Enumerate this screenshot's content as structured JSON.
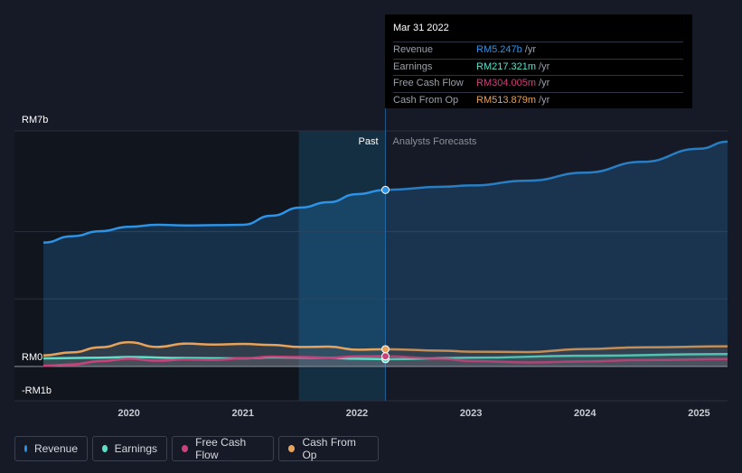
{
  "chart_data": {
    "type": "area",
    "y_axis": {
      "min": -1000,
      "max": 7000,
      "unit": "RM millions",
      "labels": [
        "RM7b",
        "RM0",
        "-RM1b"
      ]
    },
    "x_ticks": [
      "2020",
      "2021",
      "2022",
      "2023",
      "2024",
      "2025"
    ],
    "x_range": [
      2019.25,
      2025.25
    ],
    "divider_x": 2022.25,
    "past_label": "Past",
    "forecast_label": "Analysts Forecasts",
    "series": [
      {
        "name": "Revenue",
        "color": "#2d93e6",
        "points": [
          [
            2019.25,
            3680
          ],
          [
            2019.5,
            3870
          ],
          [
            2019.75,
            4020
          ],
          [
            2020.0,
            4150
          ],
          [
            2020.25,
            4210
          ],
          [
            2020.5,
            4190
          ],
          [
            2020.75,
            4200
          ],
          [
            2021.0,
            4210
          ],
          [
            2021.25,
            4480
          ],
          [
            2021.5,
            4720
          ],
          [
            2021.75,
            4880
          ],
          [
            2022.0,
            5120
          ],
          [
            2022.25,
            5247
          ]
        ],
        "forecast": [
          [
            2022.25,
            5247
          ],
          [
            2022.75,
            5340
          ],
          [
            2023.0,
            5380
          ],
          [
            2023.5,
            5520
          ],
          [
            2024.0,
            5760
          ],
          [
            2024.5,
            6080
          ],
          [
            2025.0,
            6470
          ],
          [
            2025.25,
            6680
          ]
        ]
      },
      {
        "name": "Earnings",
        "color": "#5ce0c8",
        "points": [
          [
            2019.25,
            240
          ],
          [
            2019.75,
            260
          ],
          [
            2020.0,
            280
          ],
          [
            2020.5,
            250
          ],
          [
            2021.0,
            240
          ],
          [
            2021.25,
            270
          ],
          [
            2021.75,
            260
          ],
          [
            2022.0,
            230
          ],
          [
            2022.25,
            217
          ]
        ],
        "forecast": [
          [
            2022.25,
            217
          ],
          [
            2023.0,
            260
          ],
          [
            2024.0,
            320
          ],
          [
            2025.25,
            370
          ]
        ]
      },
      {
        "name": "Free Cash Flow",
        "color": "#c9427a",
        "points": [
          [
            2019.25,
            20
          ],
          [
            2019.5,
            60
          ],
          [
            2019.75,
            160
          ],
          [
            2020.0,
            230
          ],
          [
            2020.25,
            170
          ],
          [
            2020.5,
            210
          ],
          [
            2020.75,
            200
          ],
          [
            2021.0,
            240
          ],
          [
            2021.25,
            290
          ],
          [
            2021.5,
            280
          ],
          [
            2021.75,
            260
          ],
          [
            2022.0,
            300
          ],
          [
            2022.25,
            304
          ]
        ],
        "forecast": [
          [
            2022.25,
            304
          ],
          [
            2022.75,
            230
          ],
          [
            2023.0,
            160
          ],
          [
            2023.5,
            120
          ],
          [
            2024.0,
            150
          ],
          [
            2024.5,
            190
          ],
          [
            2025.25,
            220
          ]
        ]
      },
      {
        "name": "Cash From Op",
        "color": "#e8a25a",
        "points": [
          [
            2019.25,
            330
          ],
          [
            2019.5,
            420
          ],
          [
            2019.75,
            570
          ],
          [
            2020.0,
            720
          ],
          [
            2020.25,
            580
          ],
          [
            2020.5,
            680
          ],
          [
            2020.75,
            650
          ],
          [
            2021.0,
            670
          ],
          [
            2021.25,
            640
          ],
          [
            2021.5,
            580
          ],
          [
            2021.75,
            590
          ],
          [
            2022.0,
            500
          ],
          [
            2022.25,
            514
          ]
        ],
        "forecast": [
          [
            2022.25,
            514
          ],
          [
            2022.75,
            470
          ],
          [
            2023.0,
            440
          ],
          [
            2023.5,
            430
          ],
          [
            2024.0,
            520
          ],
          [
            2024.5,
            570
          ],
          [
            2025.25,
            600
          ]
        ]
      }
    ]
  },
  "tooltip": {
    "date": "Mar 31 2022",
    "rows": [
      {
        "label": "Revenue",
        "value": "RM5.247b",
        "unit": "/yr",
        "color": "#2d93e6"
      },
      {
        "label": "Earnings",
        "value": "RM217.321m",
        "unit": "/yr",
        "color": "#5ce0c8"
      },
      {
        "label": "Free Cash Flow",
        "value": "RM304.005m",
        "unit": "/yr",
        "color": "#c9427a"
      },
      {
        "label": "Cash From Op",
        "value": "RM513.879m",
        "unit": "/yr",
        "color": "#e8a25a"
      }
    ]
  },
  "legend": [
    {
      "label": "Revenue",
      "color": "#2d93e6"
    },
    {
      "label": "Earnings",
      "color": "#5ce0c8"
    },
    {
      "label": "Free Cash Flow",
      "color": "#c9427a"
    },
    {
      "label": "Cash From Op",
      "color": "#e8a25a"
    }
  ]
}
